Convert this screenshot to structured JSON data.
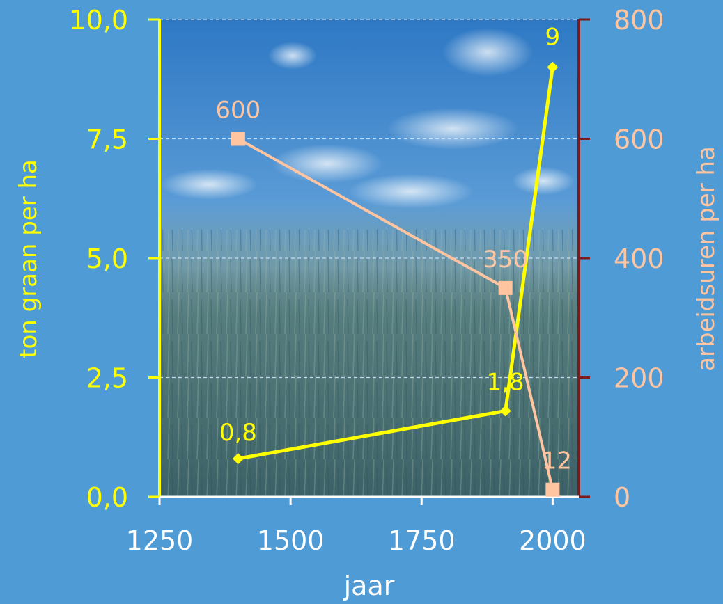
{
  "colors": {
    "background": "#4f9bd5",
    "left_axis": "#ffff00",
    "right_axis": "#7b1a1a",
    "bottom_axis": "#ffffff",
    "grain_series": "#ffff00",
    "labor_series": "#ffc4a0",
    "gridline": "#cfe6ff"
  },
  "chart_data": {
    "type": "line",
    "xlabel": "jaar",
    "ylabel_left": "ton graan per ha",
    "ylabel_right": "arbeidsuren per ha",
    "xlim": [
      1250,
      2050
    ],
    "ylim_left": [
      0,
      10
    ],
    "ylim_right": [
      0,
      800
    ],
    "x_ticks": [
      1250,
      1500,
      1750,
      2000
    ],
    "x_tick_labels": [
      "1250",
      "1500",
      "1750",
      "2000"
    ],
    "y_left_ticks": [
      0,
      2.5,
      5,
      7.5,
      10
    ],
    "y_left_tick_labels": [
      "0,0",
      "2,5",
      "5,0",
      "7,5",
      "10,0"
    ],
    "y_right_ticks": [
      0,
      200,
      400,
      600,
      800
    ],
    "y_right_tick_labels": [
      "0",
      "200",
      "400",
      "600",
      "800"
    ],
    "grid": true,
    "series": [
      {
        "name": "",
        "axis": "left",
        "marker": "diamond",
        "x": [
          1400,
          1910,
          2000
        ],
        "values": [
          0.8,
          1.8,
          9
        ],
        "labels": [
          "0,8",
          "1,8",
          "9"
        ]
      },
      {
        "name": "",
        "axis": "right",
        "marker": "square",
        "x": [
          1400,
          1910,
          2000
        ],
        "values": [
          600,
          350,
          12
        ],
        "labels": [
          "600",
          "350",
          "12"
        ]
      }
    ]
  }
}
